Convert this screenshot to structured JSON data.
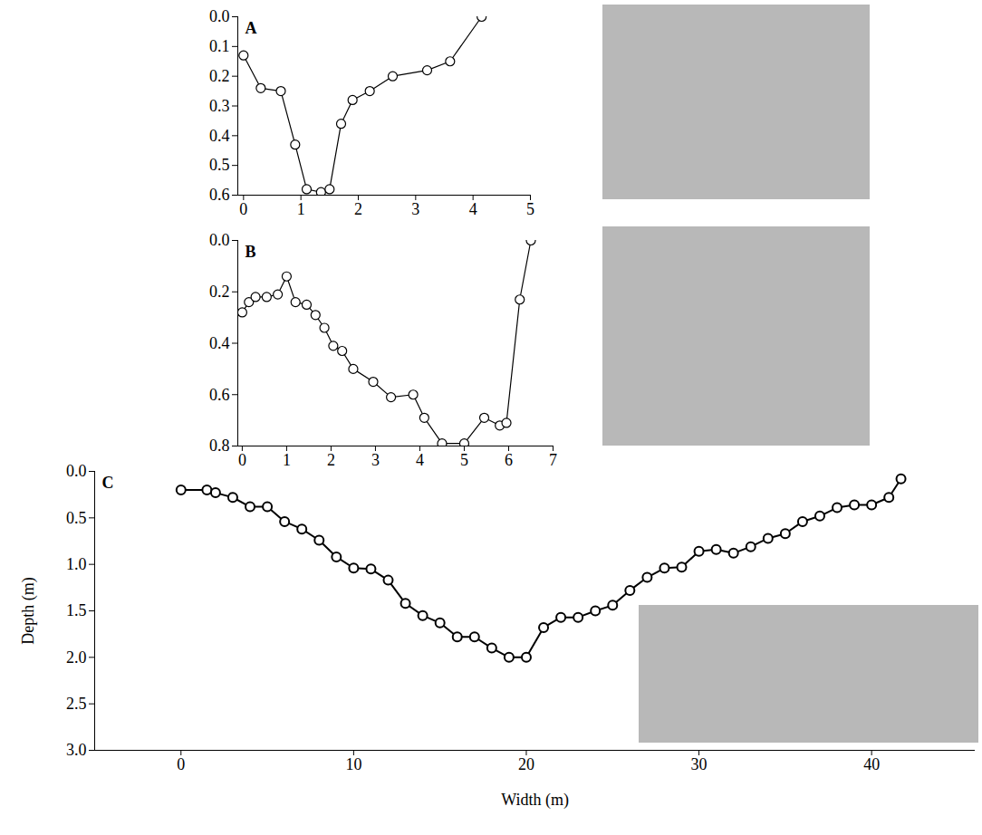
{
  "chart_data": [
    {
      "type": "line",
      "title": "A",
      "color": "#000000",
      "marker": "circle",
      "line_style": "solid",
      "x": [
        0,
        0.3,
        0.65,
        0.9,
        1.1,
        1.35,
        1.5,
        1.7,
        1.9,
        2.2,
        2.6,
        3.2,
        3.6,
        4.15
      ],
      "values": [
        0.13,
        0.24,
        0.25,
        0.43,
        0.58,
        0.59,
        0.58,
        0.36,
        0.28,
        0.25,
        0.2,
        0.18,
        0.15,
        0.0
      ],
      "xlim": [
        -0.1,
        5
      ],
      "xticks": [
        0,
        1,
        2,
        3,
        4,
        5
      ],
      "ylim": [
        0,
        0.6
      ],
      "yticks": [
        {
          "value": 0,
          "label": "0.0"
        },
        0.1,
        0.2,
        0.3,
        0.4,
        0.5,
        0.6
      ]
    },
    {
      "type": "line",
      "title": "B",
      "color": "#000000",
      "marker": "circle",
      "line_style": "solid",
      "x": [
        0,
        0.15,
        0.3,
        0.55,
        0.8,
        1.0,
        1.2,
        1.45,
        1.65,
        1.85,
        2.05,
        2.25,
        2.5,
        2.95,
        3.35,
        3.85,
        4.1,
        4.5,
        5.0,
        5.45,
        5.8,
        5.95,
        6.25,
        6.5
      ],
      "values": [
        0.28,
        0.24,
        0.22,
        0.22,
        0.21,
        0.14,
        0.24,
        0.25,
        0.29,
        0.34,
        0.41,
        0.43,
        0.5,
        0.55,
        0.61,
        0.6,
        0.69,
        0.79,
        0.79,
        0.69,
        0.72,
        0.71,
        0.23,
        0.0
      ],
      "xlim": [
        -0.1,
        7
      ],
      "xticks": [
        0,
        1,
        2,
        3,
        4,
        5,
        6,
        7
      ],
      "ylim": [
        0,
        0.8
      ],
      "yticks": [
        {
          "value": 0,
          "label": "0.0"
        },
        0.2,
        0.4,
        0.6,
        0.8
      ]
    },
    {
      "type": "line",
      "title": "C",
      "color": "#000000",
      "marker": "circle",
      "line_style": "solid",
      "x_label": "Width (m)",
      "y_label": "Depth (m)",
      "x": [
        0,
        1.5,
        2,
        3,
        4,
        5,
        6,
        7,
        8,
        9,
        10,
        11,
        12,
        13,
        14,
        15,
        16,
        17,
        18,
        19,
        20,
        21,
        22,
        23,
        24,
        25,
        26,
        27,
        28,
        29,
        30,
        31,
        32,
        33,
        34,
        35,
        36,
        37,
        38,
        39,
        40,
        41,
        41.7
      ],
      "values": [
        0.2,
        0.2,
        0.23,
        0.28,
        0.38,
        0.38,
        0.54,
        0.62,
        0.74,
        0.92,
        1.04,
        1.05,
        1.17,
        1.42,
        1.55,
        1.63,
        1.78,
        1.78,
        1.9,
        2.0,
        2.0,
        1.68,
        1.57,
        1.57,
        1.5,
        1.44,
        1.28,
        1.14,
        1.04,
        1.03,
        0.86,
        0.84,
        0.88,
        0.81,
        0.72,
        0.67,
        0.54,
        0.48,
        0.39,
        0.36,
        0.36,
        0.28,
        0.08
      ],
      "xlim": [
        -5,
        46
      ],
      "xticks": [
        0,
        10,
        20,
        30,
        40
      ],
      "ylim": [
        0,
        3
      ],
      "yticks": [
        {
          "value": 0,
          "label": "0.0"
        },
        0.5,
        {
          "value": 1,
          "label": "1.0"
        },
        1.5,
        {
          "value": 2,
          "label": "2.0"
        },
        2.5,
        {
          "value": 3,
          "label": "3.0"
        }
      ]
    }
  ]
}
